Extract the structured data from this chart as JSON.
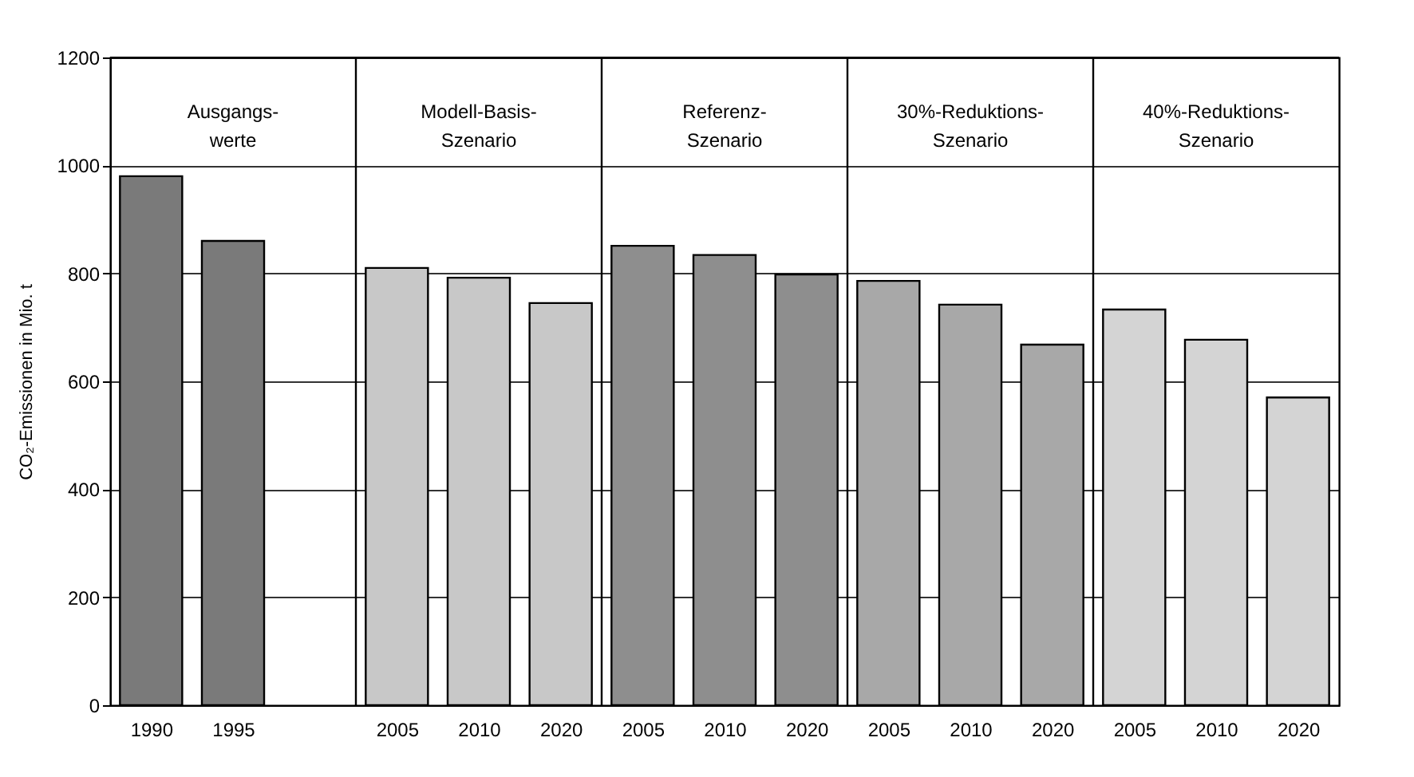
{
  "chart_data": {
    "type": "bar",
    "categories": [
      "1990",
      "1995",
      null,
      "2005",
      "2010",
      "2020",
      "2005",
      "2010",
      "2020",
      "2005",
      "2010",
      "2020",
      "2005",
      "2010",
      "2020"
    ],
    "values": [
      980,
      860,
      null,
      810,
      792,
      745,
      851,
      834,
      798,
      786,
      742,
      668,
      733,
      677,
      570
    ],
    "colors": [
      "#7a7a7a",
      "#7a7a7a",
      null,
      "#c8c8c8",
      "#c8c8c8",
      "#c8c8c8",
      "#8e8e8e",
      "#8e8e8e",
      "#8e8e8e",
      "#a8a8a8",
      "#a8a8a8",
      "#a8a8a8",
      "#d4d4d4",
      "#d4d4d4",
      "#d4d4d4"
    ],
    "ylabel": "CO₂-Emissionen in Mio. t",
    "ylim": [
      0,
      1200
    ],
    "yticks": [
      0,
      200,
      400,
      600,
      800,
      1000,
      1200
    ],
    "grid": "y",
    "annotations": [
      "Ausgangs-\nwerte",
      "Modell-Basis-\nSzenario",
      "Referenz-\nSzenario",
      "30%-Reduktions-\nSzenario",
      "40%-Reduktions-\nSzenario"
    ]
  }
}
